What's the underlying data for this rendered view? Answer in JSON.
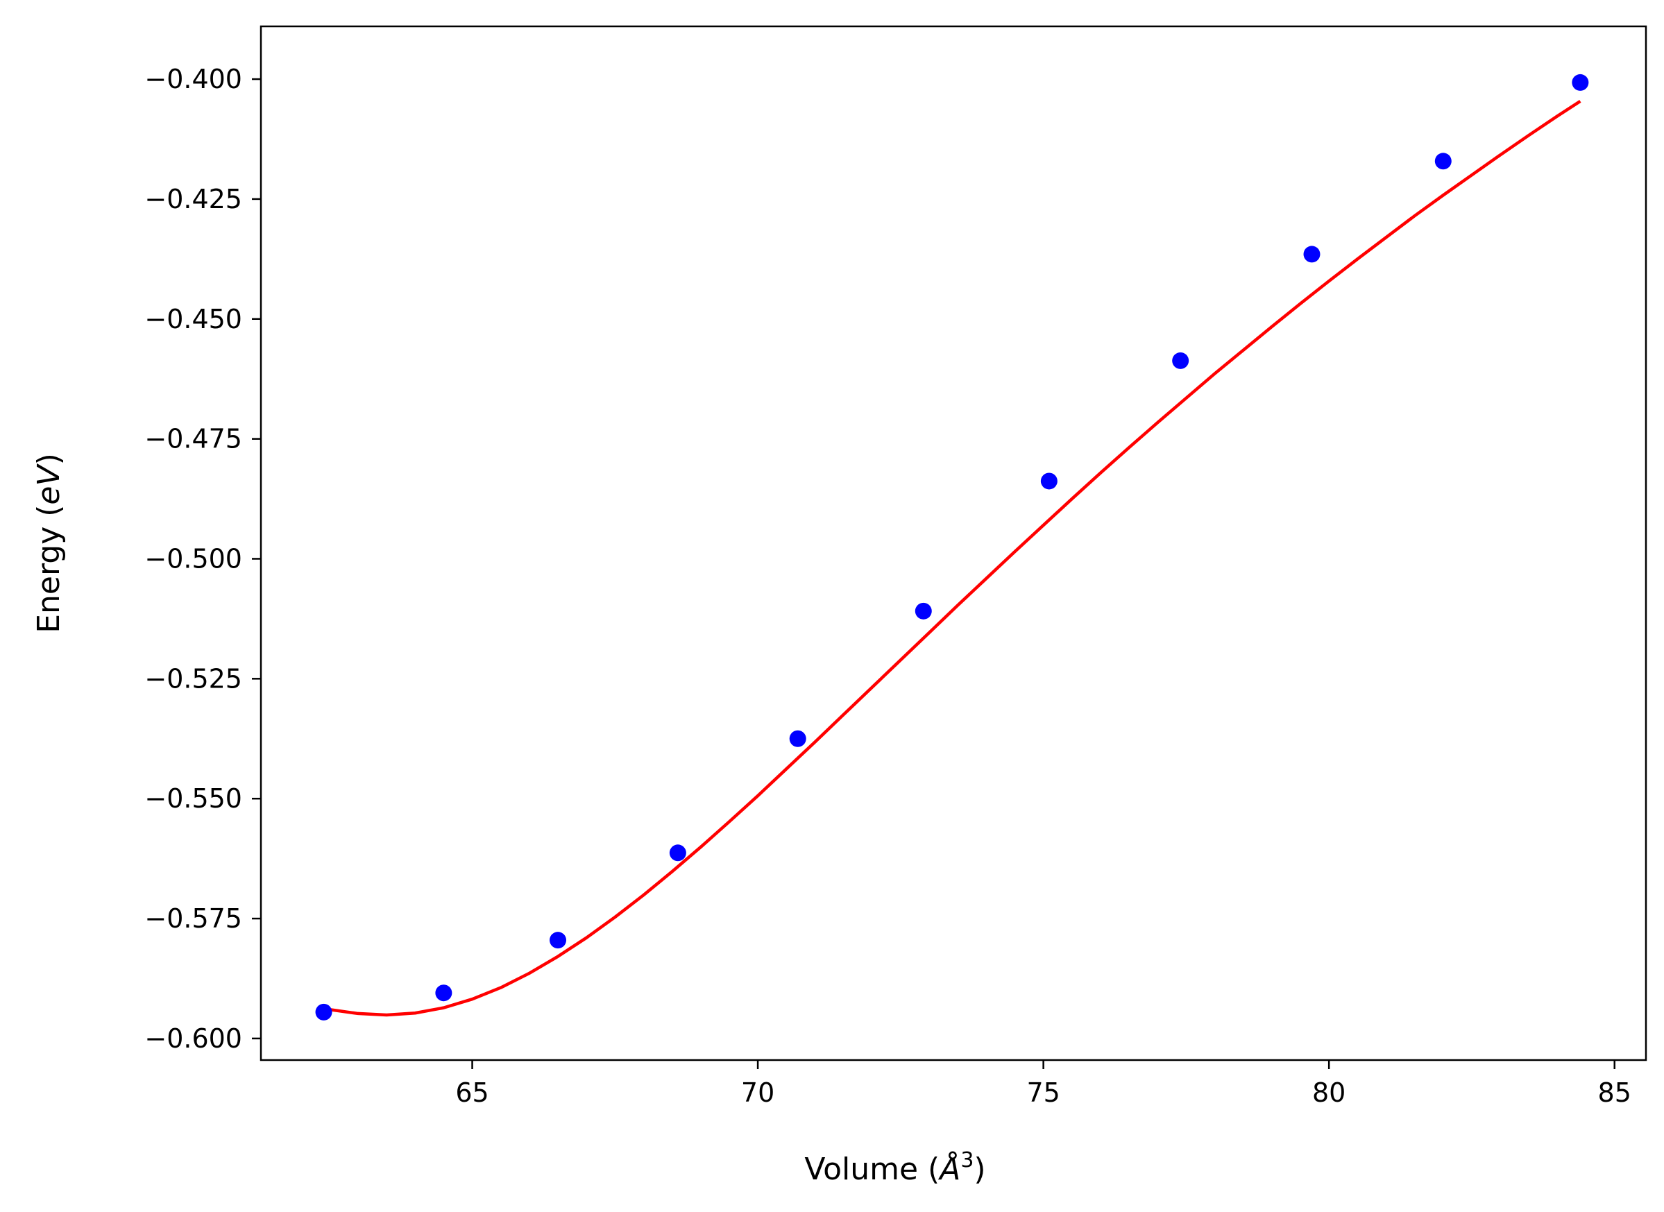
{
  "chart_data": {
    "type": "scatter",
    "xlabel": "Volume (Å³)",
    "xlabel_parts": {
      "prefix": "Volume (",
      "symbol": "Å",
      "exponent": "3",
      "suffix": ")"
    },
    "ylabel": "Energy (eV)",
    "ylabel_parts": {
      "prefix": "Energy (",
      "italic": "eV",
      "suffix": ")"
    },
    "xlim": [
      61.3,
      85.55
    ],
    "ylim": [
      -0.6045,
      -0.389
    ],
    "xticks": [
      65,
      70,
      75,
      80,
      85
    ],
    "xtick_labels": [
      "65",
      "70",
      "75",
      "80",
      "85"
    ],
    "yticks": [
      -0.4,
      -0.425,
      -0.45,
      -0.475,
      -0.5,
      -0.525,
      -0.55,
      -0.575,
      -0.6
    ],
    "ytick_labels": [
      "−0.400",
      "−0.425",
      "−0.450",
      "−0.475",
      "−0.500",
      "−0.525",
      "−0.550",
      "−0.575",
      "−0.600"
    ],
    "grid": false,
    "series": [
      {
        "kind": "points",
        "color": "#0000ff",
        "x": [
          62.4,
          64.5,
          66.5,
          68.6,
          70.7,
          72.9,
          75.1,
          77.4,
          79.7,
          82.0,
          84.4
        ],
        "y": [
          -0.5945,
          -0.5905,
          -0.5795,
          -0.5613,
          -0.5375,
          -0.5109,
          -0.4838,
          -0.4587,
          -0.4365,
          -0.4171,
          -0.4007
        ]
      },
      {
        "kind": "line",
        "color": "#ff0000",
        "x": [
          62.4,
          63.0,
          63.5,
          64.0,
          64.5,
          65.0,
          65.5,
          66.0,
          66.5,
          67.0,
          67.5,
          68.0,
          68.5,
          69.0,
          69.5,
          70.0,
          70.5,
          71.0,
          71.5,
          72.0,
          72.5,
          73.0,
          73.5,
          74.0,
          74.5,
          75.0,
          75.5,
          76.0,
          76.5,
          77.0,
          77.5,
          78.0,
          78.5,
          79.0,
          79.5,
          80.0,
          80.5,
          81.0,
          81.5,
          82.0,
          82.5,
          83.0,
          83.5,
          84.0,
          84.4
        ],
        "y": [
          -0.5938,
          -0.5948,
          -0.5951,
          -0.5947,
          -0.5936,
          -0.5918,
          -0.5894,
          -0.5864,
          -0.5829,
          -0.579,
          -0.5747,
          -0.5701,
          -0.5652,
          -0.5601,
          -0.5548,
          -0.5494,
          -0.5438,
          -0.5382,
          -0.5325,
          -0.5268,
          -0.5211,
          -0.5154,
          -0.5097,
          -0.5041,
          -0.4985,
          -0.493,
          -0.4875,
          -0.4821,
          -0.4768,
          -0.4716,
          -0.4665,
          -0.4614,
          -0.4565,
          -0.4516,
          -0.4468,
          -0.4421,
          -0.4375,
          -0.433,
          -0.4285,
          -0.4242,
          -0.42,
          -0.4158,
          -0.4117,
          -0.4077,
          -0.4046
        ]
      }
    ]
  }
}
